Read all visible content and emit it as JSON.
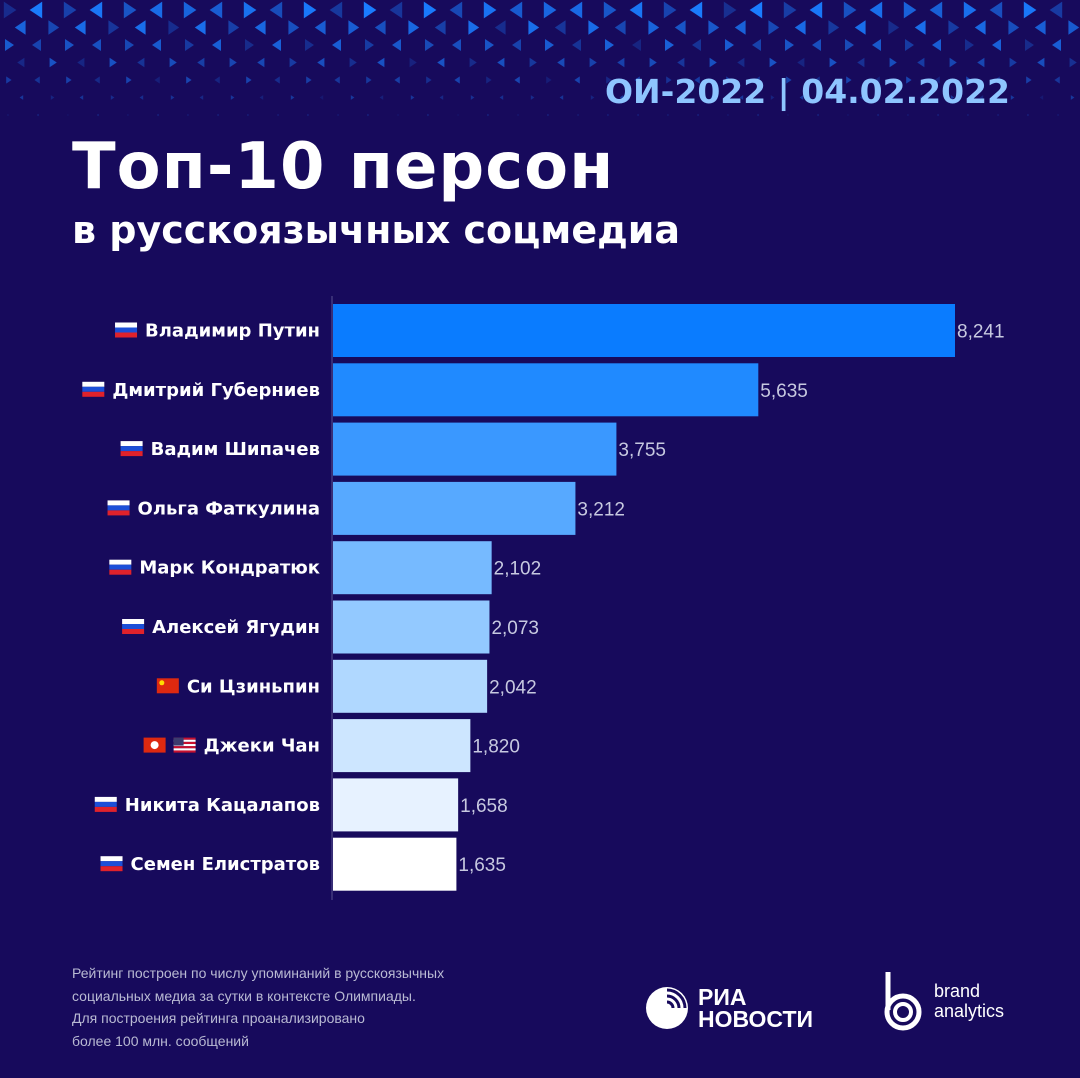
{
  "header": {
    "tag": "ОИ-2022 | 04.02.2022",
    "title": "Топ-10 персон",
    "subtitle": "в русскоязычных соцмедиа"
  },
  "chart_data": {
    "type": "bar",
    "orientation": "horizontal",
    "categories": [
      "Владимир Путин",
      "Дмитрий Губерниев",
      "Вадим Шипачев",
      "Ольга Фаткулина",
      "Марк Кондратюк",
      "Алексей Ягудин",
      "Си Цзиньпин",
      "Джеки Чан",
      "Никита Кацалапов",
      "Семен Елистратов"
    ],
    "flags": [
      [
        "ru"
      ],
      [
        "ru"
      ],
      [
        "ru"
      ],
      [
        "ru"
      ],
      [
        "ru"
      ],
      [
        "ru"
      ],
      [
        "cn"
      ],
      [
        "hk",
        "us"
      ],
      [
        "ru"
      ],
      [
        "ru"
      ]
    ],
    "values": [
      8241,
      5635,
      3755,
      3212,
      2102,
      2073,
      2042,
      1820,
      1658,
      1635
    ],
    "value_labels": [
      "8,241",
      "5,635",
      "3,755",
      "3,212",
      "2,102",
      "2,073",
      "2,042",
      "1,820",
      "1,658",
      "1,635"
    ],
    "bar_colors": [
      "#0a7cff",
      "#208aff",
      "#3a98ff",
      "#57a9ff",
      "#76baff",
      "#93c9ff",
      "#b0d8ff",
      "#cde6ff",
      "#e7f2ff",
      "#ffffff"
    ],
    "grid": false
  },
  "footer": {
    "note": [
      "Рейтинг построен по числу упоминаний в русскоязычных",
      "социальных медиа за сутки в контексте Олимпиады.",
      "Для построения рейтинга проанализировано",
      "более 100 млн. сообщений"
    ],
    "ria_logo": [
      "РИА",
      "НОВОСТИ"
    ],
    "ba_logo": [
      "brand",
      "analytics"
    ]
  }
}
